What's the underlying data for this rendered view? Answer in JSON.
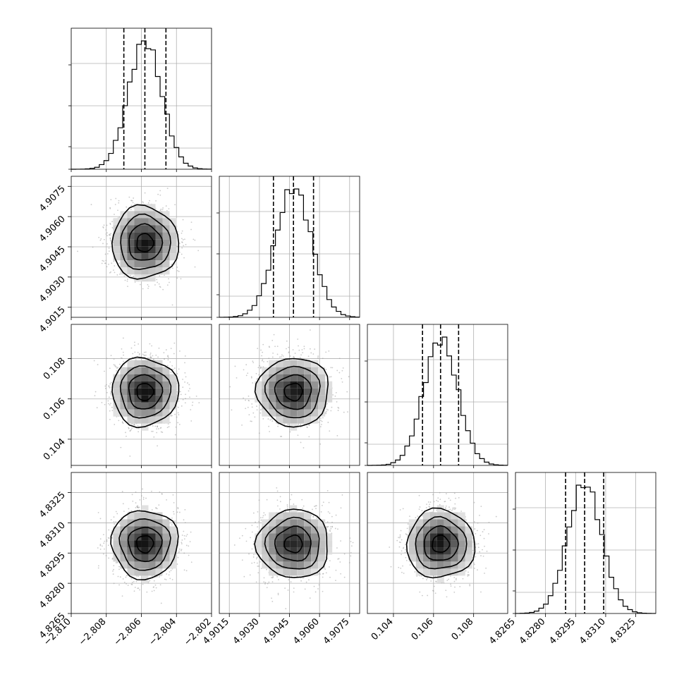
{
  "chart_data": {
    "type": "corner",
    "params": [
      {
        "center": -2.8058,
        "sigma": 0.00095,
        "range": [
          -2.81,
          -2.802
        ],
        "q": [
          -2.807,
          -2.8058,
          -2.8046
        ],
        "ticks": [
          -2.81,
          -2.808,
          -2.806,
          -2.804,
          -2.802
        ],
        "tick_labels": [
          "−2.810",
          "−2.808",
          "−2.806",
          "−2.804",
          "−2.802"
        ]
      },
      {
        "center": 4.9047,
        "sigma": 0.0009,
        "range": [
          4.901,
          4.908
        ],
        "q": [
          4.9037,
          4.9047,
          4.9057
        ],
        "ticks": [
          4.9015,
          4.903,
          4.9045,
          4.906,
          4.9075
        ],
        "tick_labels": [
          "4.9015",
          "4.9030",
          "4.9045",
          "4.9060",
          "4.9075"
        ]
      },
      {
        "center": 0.10635,
        "sigma": 0.00085,
        "range": [
          0.1027,
          0.1097
        ],
        "q": [
          0.10545,
          0.10635,
          0.10725
        ],
        "ticks": [
          0.104,
          0.106,
          0.108
        ],
        "tick_labels": [
          "0.104",
          "0.106",
          "0.108"
        ]
      },
      {
        "center": 4.82995,
        "sigma": 0.00085,
        "range": [
          4.8265,
          4.8335
        ],
        "q": [
          4.829,
          4.82995,
          4.8309
        ],
        "ticks": [
          4.8265,
          4.828,
          4.8295,
          4.831,
          4.8325
        ],
        "tick_labels": [
          "4.8265",
          "4.8280",
          "4.8295",
          "4.8310",
          "4.8325"
        ]
      }
    ],
    "hist_bins": 30,
    "quantiles": [
      0.16,
      0.5,
      0.84
    ],
    "contour_levels_sigma": [
      0.5,
      1.0,
      1.5,
      2.0
    ],
    "colors": {
      "points": "#9e9e9e",
      "density": "#000000",
      "lines": "#000000",
      "grid": "#b0b0b0"
    }
  }
}
